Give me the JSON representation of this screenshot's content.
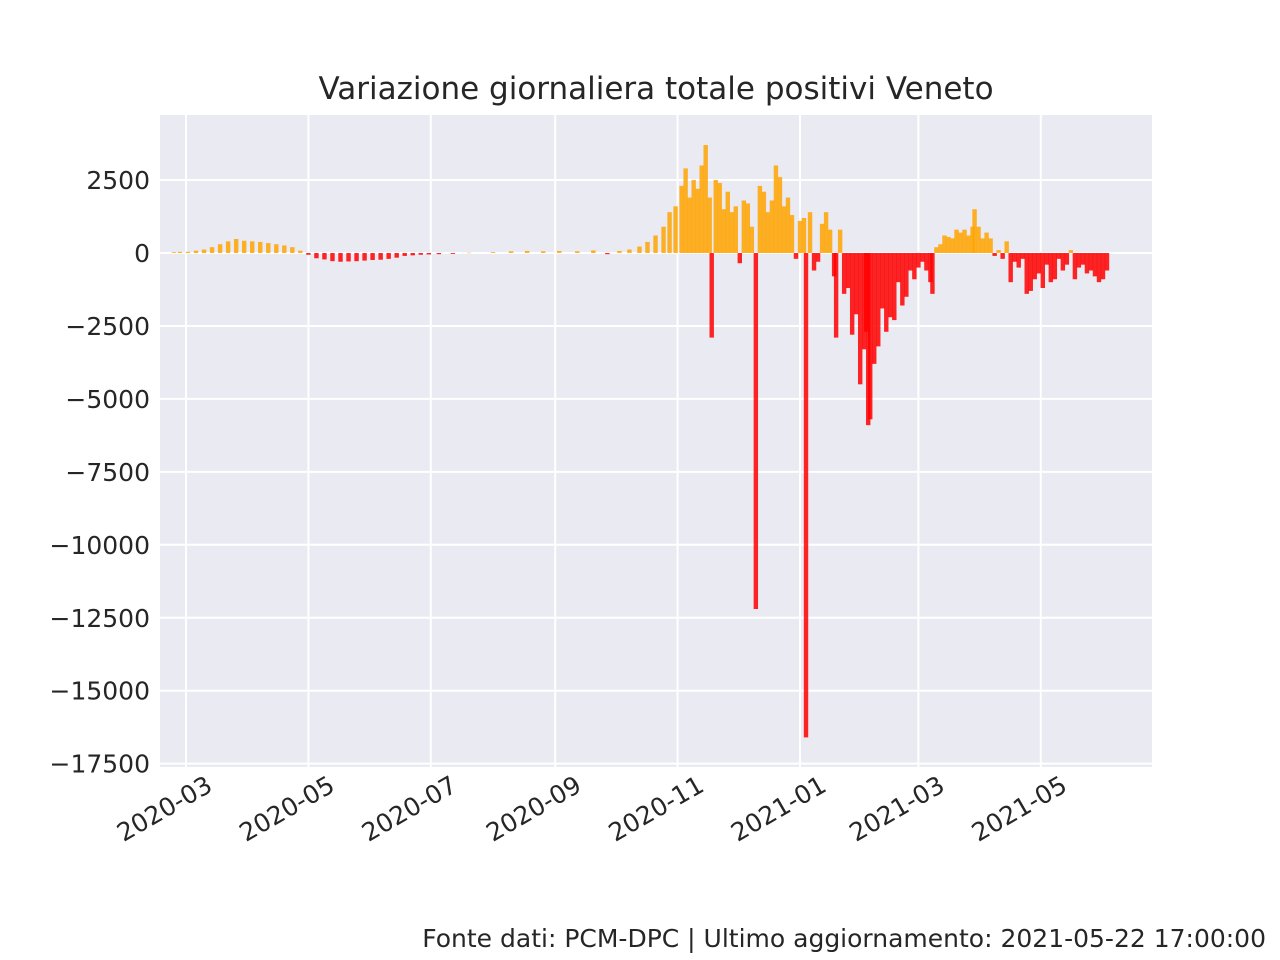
{
  "chart_data": {
    "type": "bar",
    "title": "Variazione giornaliera totale positivi Veneto",
    "xlabel": "",
    "ylabel": "",
    "x_axis": "date",
    "x_range": [
      "2020-02-01",
      "2021-06-15"
    ],
    "ylim": [
      -17800,
      4000
    ],
    "y_ticks": [
      2500,
      0,
      -2500,
      -5000,
      -7500,
      -10000,
      -12500,
      -15000,
      -17500
    ],
    "y_tick_labels": [
      "2500",
      "0",
      "−2500",
      "−5000",
      "−7500",
      "−10000",
      "−12500",
      "−15000",
      "−17500"
    ],
    "x_ticks": [
      "2020-03-01",
      "2020-05-01",
      "2020-07-01",
      "2020-09-01",
      "2020-11-01",
      "2021-01-01",
      "2021-03-01",
      "2021-05-01"
    ],
    "x_tick_labels": [
      "2020-03",
      "2020-05",
      "2020-07",
      "2020-09",
      "2020-11",
      "2021-01",
      "2021-03",
      "2021-05"
    ],
    "colors": {
      "positive": "#ffa500",
      "negative": "#ff0000",
      "background": "#eaeaf2",
      "grid": "#ffffff"
    },
    "series": [
      {
        "name": "",
        "points": [
          [
            "2020-02-24",
            30
          ],
          [
            "2020-02-27",
            40
          ],
          [
            "2020-03-02",
            40
          ],
          [
            "2020-03-06",
            80
          ],
          [
            "2020-03-10",
            120
          ],
          [
            "2020-03-14",
            200
          ],
          [
            "2020-03-18",
            300
          ],
          [
            "2020-03-22",
            400
          ],
          [
            "2020-03-26",
            480
          ],
          [
            "2020-03-30",
            420
          ],
          [
            "2020-04-03",
            400
          ],
          [
            "2020-04-07",
            380
          ],
          [
            "2020-04-11",
            340
          ],
          [
            "2020-04-15",
            300
          ],
          [
            "2020-04-19",
            260
          ],
          [
            "2020-04-23",
            200
          ],
          [
            "2020-04-27",
            80
          ],
          [
            "2020-05-01",
            -60
          ],
          [
            "2020-05-05",
            -180
          ],
          [
            "2020-05-09",
            -220
          ],
          [
            "2020-05-13",
            -280
          ],
          [
            "2020-05-17",
            -300
          ],
          [
            "2020-05-21",
            -290
          ],
          [
            "2020-05-25",
            -280
          ],
          [
            "2020-05-29",
            -260
          ],
          [
            "2020-06-02",
            -240
          ],
          [
            "2020-06-06",
            -230
          ],
          [
            "2020-06-10",
            -200
          ],
          [
            "2020-06-14",
            -160
          ],
          [
            "2020-06-18",
            -100
          ],
          [
            "2020-06-22",
            -80
          ],
          [
            "2020-06-26",
            -60
          ],
          [
            "2020-06-30",
            -50
          ],
          [
            "2020-07-05",
            -40
          ],
          [
            "2020-07-12",
            -30
          ],
          [
            "2020-07-20",
            10
          ],
          [
            "2020-08-01",
            30
          ],
          [
            "2020-08-10",
            60
          ],
          [
            "2020-08-18",
            70
          ],
          [
            "2020-08-26",
            60
          ],
          [
            "2020-09-03",
            70
          ],
          [
            "2020-09-12",
            60
          ],
          [
            "2020-09-20",
            90
          ],
          [
            "2020-09-27",
            -40
          ],
          [
            "2020-10-03",
            70
          ],
          [
            "2020-10-08",
            120
          ],
          [
            "2020-10-13",
            220
          ],
          [
            "2020-10-17",
            380
          ],
          [
            "2020-10-21",
            600
          ],
          [
            "2020-10-25",
            900
          ],
          [
            "2020-10-28",
            1400
          ],
          [
            "2020-10-31",
            1600
          ],
          [
            "2020-11-03",
            2300
          ],
          [
            "2020-11-05",
            2900
          ],
          [
            "2020-11-07",
            1900
          ],
          [
            "2020-11-09",
            2500
          ],
          [
            "2020-11-11",
            2200
          ],
          [
            "2020-11-13",
            3000
          ],
          [
            "2020-11-15",
            3700
          ],
          [
            "2020-11-17",
            1900
          ],
          [
            "2020-11-18",
            -2900
          ],
          [
            "2020-11-20",
            2500
          ],
          [
            "2020-11-22",
            2400
          ],
          [
            "2020-11-24",
            1500
          ],
          [
            "2020-11-26",
            2100
          ],
          [
            "2020-11-28",
            1400
          ],
          [
            "2020-11-30",
            1600
          ],
          [
            "2020-12-02",
            -350
          ],
          [
            "2020-12-04",
            1800
          ],
          [
            "2020-12-06",
            1700
          ],
          [
            "2020-12-08",
            900
          ],
          [
            "2020-12-10",
            -12200
          ],
          [
            "2020-12-12",
            2300
          ],
          [
            "2020-12-14",
            2100
          ],
          [
            "2020-12-16",
            1400
          ],
          [
            "2020-12-18",
            1800
          ],
          [
            "2020-12-20",
            3000
          ],
          [
            "2020-12-22",
            2600
          ],
          [
            "2020-12-24",
            1600
          ],
          [
            "2020-12-26",
            1900
          ],
          [
            "2020-12-28",
            1300
          ],
          [
            "2020-12-30",
            -200
          ],
          [
            "2021-01-01",
            1100
          ],
          [
            "2021-01-03",
            1200
          ],
          [
            "2021-01-04",
            -16600
          ],
          [
            "2021-01-06",
            1400
          ],
          [
            "2021-01-08",
            -600
          ],
          [
            "2021-01-10",
            -300
          ],
          [
            "2021-01-12",
            1000
          ],
          [
            "2021-01-14",
            1400
          ],
          [
            "2021-01-16",
            800
          ],
          [
            "2021-01-18",
            -800
          ],
          [
            "2021-01-19",
            -2900
          ],
          [
            "2021-01-21",
            800
          ],
          [
            "2021-01-23",
            -1400
          ],
          [
            "2021-01-25",
            -1200
          ],
          [
            "2021-01-27",
            -2800
          ],
          [
            "2021-01-29",
            -2100
          ],
          [
            "2021-01-31",
            -4500
          ],
          [
            "2021-02-02",
            -3300
          ],
          [
            "2021-02-03",
            -2700
          ],
          [
            "2021-02-04",
            -5900
          ],
          [
            "2021-02-05",
            -5700
          ],
          [
            "2021-02-07",
            -3800
          ],
          [
            "2021-02-09",
            -3200
          ],
          [
            "2021-02-11",
            -1900
          ],
          [
            "2021-02-13",
            -2700
          ],
          [
            "2021-02-15",
            -2200
          ],
          [
            "2021-02-17",
            -2300
          ],
          [
            "2021-02-19",
            -1000
          ],
          [
            "2021-02-21",
            -1800
          ],
          [
            "2021-02-23",
            -1500
          ],
          [
            "2021-02-25",
            -600
          ],
          [
            "2021-02-27",
            -900
          ],
          [
            "2021-03-01",
            -500
          ],
          [
            "2021-03-03",
            -300
          ],
          [
            "2021-03-05",
            -600
          ],
          [
            "2021-03-07",
            -1000
          ],
          [
            "2021-03-08",
            -1400
          ],
          [
            "2021-03-10",
            200
          ],
          [
            "2021-03-12",
            300
          ],
          [
            "2021-03-14",
            600
          ],
          [
            "2021-03-16",
            550
          ],
          [
            "2021-03-18",
            500
          ],
          [
            "2021-03-20",
            800
          ],
          [
            "2021-03-22",
            700
          ],
          [
            "2021-03-24",
            800
          ],
          [
            "2021-03-26",
            600
          ],
          [
            "2021-03-28",
            900
          ],
          [
            "2021-03-29",
            1500
          ],
          [
            "2021-03-31",
            900
          ],
          [
            "2021-04-02",
            500
          ],
          [
            "2021-04-04",
            700
          ],
          [
            "2021-04-06",
            500
          ],
          [
            "2021-04-08",
            -100
          ],
          [
            "2021-04-10",
            100
          ],
          [
            "2021-04-12",
            -200
          ],
          [
            "2021-04-14",
            400
          ],
          [
            "2021-04-16",
            -1000
          ],
          [
            "2021-04-18",
            -300
          ],
          [
            "2021-04-20",
            -500
          ],
          [
            "2021-04-22",
            -200
          ],
          [
            "2021-04-24",
            -1400
          ],
          [
            "2021-04-26",
            -1300
          ],
          [
            "2021-04-28",
            -900
          ],
          [
            "2021-04-30",
            -700
          ],
          [
            "2021-05-02",
            -1200
          ],
          [
            "2021-05-04",
            -400
          ],
          [
            "2021-05-06",
            -1000
          ],
          [
            "2021-05-08",
            -900
          ],
          [
            "2021-05-10",
            -200
          ],
          [
            "2021-05-12",
            -600
          ],
          [
            "2021-05-14",
            -400
          ],
          [
            "2021-05-16",
            100
          ],
          [
            "2021-05-18",
            -900
          ],
          [
            "2021-05-20",
            -500
          ],
          [
            "2021-05-22",
            -400
          ],
          [
            "2021-05-24",
            -700
          ],
          [
            "2021-05-26",
            -600
          ],
          [
            "2021-05-28",
            -800
          ],
          [
            "2021-05-30",
            -1000
          ],
          [
            "2021-06-01",
            -900
          ],
          [
            "2021-06-03",
            -600
          ]
        ]
      }
    ]
  },
  "footer": "Fonte dati: PCM-DPC | Ultimo aggiornamento: 2021-05-22 17:00:00"
}
